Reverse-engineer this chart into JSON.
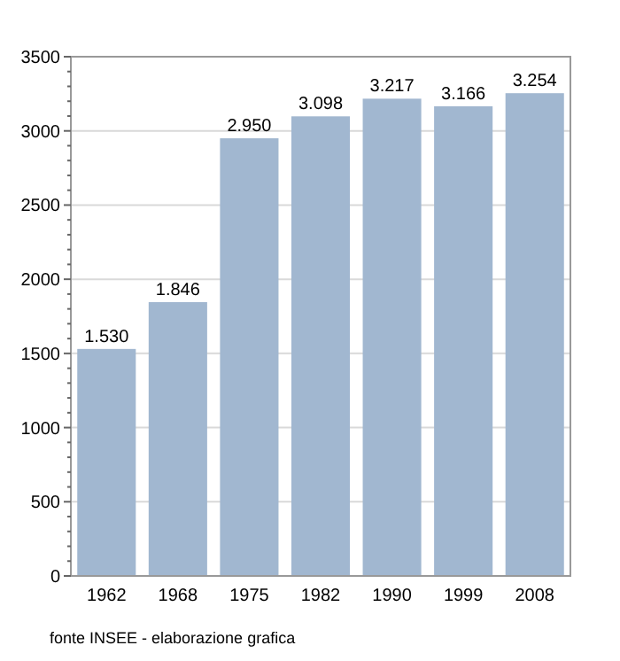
{
  "chart_data": {
    "type": "bar",
    "categories": [
      "1962",
      "1968",
      "1975",
      "1982",
      "1990",
      "1999",
      "2008"
    ],
    "values": [
      1530,
      1846,
      2950,
      3098,
      3217,
      3166,
      3254
    ],
    "value_labels": [
      "1.530",
      "1.846",
      "2.950",
      "3.098",
      "3.217",
      "3.166",
      "3.254"
    ],
    "color": "#a1b7d0",
    "ylim": [
      0,
      3500
    ],
    "yticks": [
      0,
      500,
      1000,
      1500,
      2000,
      2500,
      3000,
      3500
    ],
    "grid": "y",
    "annotations": [
      "fonte INSEE - elaborazione grafica"
    ]
  }
}
